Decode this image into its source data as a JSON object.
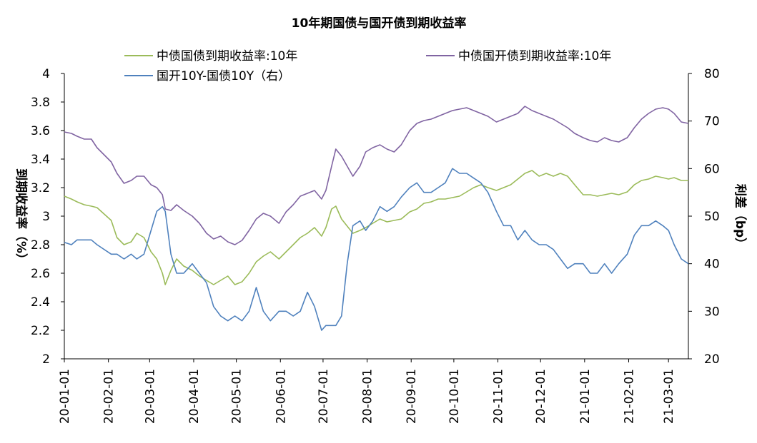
{
  "chart_data": {
    "type": "line",
    "title": "10年期国债与国开债到期收益率",
    "ylabel_left": "到期收益率（%）",
    "ylabel_right": "利差（bp）",
    "ylim_left": [
      2,
      4
    ],
    "ylim_right": [
      20,
      80
    ],
    "yticks_left": [
      "2",
      "2.2",
      "2.4",
      "2.6",
      "2.8",
      "3",
      "3.2",
      "3.4",
      "3.6",
      "3.8",
      "4"
    ],
    "yticks_right": [
      "20",
      "30",
      "40",
      "50",
      "60",
      "70",
      "80"
    ],
    "xticks": [
      "20-01-01",
      "20-02-01",
      "20-03-01",
      "20-04-01",
      "20-05-01",
      "20-06-01",
      "20-07-01",
      "20-08-01",
      "20-09-01",
      "20-10-01",
      "20-11-01",
      "20-12-01",
      "21-01-01",
      "21-02-01",
      "21-03-01"
    ],
    "x_range": [
      "2020-01-01",
      "2021-03-15"
    ],
    "legend_position": "top",
    "series": [
      {
        "name": "中债国债到期收益率:10年",
        "axis": "left",
        "color": "#9bbb59",
        "points": [
          [
            "2020-01-01",
            3.14
          ],
          [
            "2020-01-06",
            3.12
          ],
          [
            "2020-01-10",
            3.1
          ],
          [
            "2020-01-15",
            3.08
          ],
          [
            "2020-01-20",
            3.07
          ],
          [
            "2020-01-24",
            3.06
          ],
          [
            "2020-02-03",
            2.97
          ],
          [
            "2020-02-07",
            2.85
          ],
          [
            "2020-02-12",
            2.8
          ],
          [
            "2020-02-17",
            2.82
          ],
          [
            "2020-02-21",
            2.88
          ],
          [
            "2020-02-26",
            2.85
          ],
          [
            "2020-03-02",
            2.75
          ],
          [
            "2020-03-06",
            2.7
          ],
          [
            "2020-03-10",
            2.6
          ],
          [
            "2020-03-12",
            2.52
          ],
          [
            "2020-03-16",
            2.62
          ],
          [
            "2020-03-20",
            2.7
          ],
          [
            "2020-03-25",
            2.65
          ],
          [
            "2020-03-31",
            2.62
          ],
          [
            "2020-04-05",
            2.58
          ],
          [
            "2020-04-10",
            2.55
          ],
          [
            "2020-04-15",
            2.52
          ],
          [
            "2020-04-20",
            2.55
          ],
          [
            "2020-04-25",
            2.58
          ],
          [
            "2020-04-30",
            2.52
          ],
          [
            "2020-05-05",
            2.54
          ],
          [
            "2020-05-10",
            2.6
          ],
          [
            "2020-05-15",
            2.68
          ],
          [
            "2020-05-20",
            2.72
          ],
          [
            "2020-05-25",
            2.75
          ],
          [
            "2020-05-31",
            2.7
          ],
          [
            "2020-06-05",
            2.75
          ],
          [
            "2020-06-10",
            2.8
          ],
          [
            "2020-06-15",
            2.85
          ],
          [
            "2020-06-20",
            2.88
          ],
          [
            "2020-06-25",
            2.92
          ],
          [
            "2020-06-30",
            2.86
          ],
          [
            "2020-07-03",
            2.92
          ],
          [
            "2020-07-07",
            3.05
          ],
          [
            "2020-07-10",
            3.07
          ],
          [
            "2020-07-14",
            2.98
          ],
          [
            "2020-07-18",
            2.93
          ],
          [
            "2020-07-22",
            2.88
          ],
          [
            "2020-07-27",
            2.9
          ],
          [
            "2020-07-31",
            2.92
          ],
          [
            "2020-08-05",
            2.95
          ],
          [
            "2020-08-10",
            2.98
          ],
          [
            "2020-08-15",
            2.96
          ],
          [
            "2020-08-20",
            2.97
          ],
          [
            "2020-08-25",
            2.98
          ],
          [
            "2020-08-31",
            3.03
          ],
          [
            "2020-09-05",
            3.05
          ],
          [
            "2020-09-10",
            3.09
          ],
          [
            "2020-09-15",
            3.1
          ],
          [
            "2020-09-20",
            3.12
          ],
          [
            "2020-09-25",
            3.12
          ],
          [
            "2020-09-30",
            3.13
          ],
          [
            "2020-10-05",
            3.14
          ],
          [
            "2020-10-10",
            3.17
          ],
          [
            "2020-10-15",
            3.2
          ],
          [
            "2020-10-20",
            3.22
          ],
          [
            "2020-10-25",
            3.2
          ],
          [
            "2020-10-31",
            3.18
          ],
          [
            "2020-11-05",
            3.2
          ],
          [
            "2020-11-10",
            3.22
          ],
          [
            "2020-11-15",
            3.26
          ],
          [
            "2020-11-20",
            3.3
          ],
          [
            "2020-11-25",
            3.32
          ],
          [
            "2020-11-30",
            3.28
          ],
          [
            "2020-12-05",
            3.3
          ],
          [
            "2020-12-10",
            3.28
          ],
          [
            "2020-12-15",
            3.3
          ],
          [
            "2020-12-20",
            3.28
          ],
          [
            "2020-12-25",
            3.22
          ],
          [
            "2020-12-31",
            3.15
          ],
          [
            "2021-01-05",
            3.15
          ],
          [
            "2021-01-10",
            3.14
          ],
          [
            "2021-01-15",
            3.15
          ],
          [
            "2021-01-20",
            3.16
          ],
          [
            "2021-01-25",
            3.15
          ],
          [
            "2021-01-31",
            3.17
          ],
          [
            "2021-02-05",
            3.22
          ],
          [
            "2021-02-10",
            3.25
          ],
          [
            "2021-02-15",
            3.26
          ],
          [
            "2021-02-20",
            3.28
          ],
          [
            "2021-02-25",
            3.27
          ],
          [
            "2021-03-01",
            3.26
          ],
          [
            "2021-03-05",
            3.27
          ],
          [
            "2021-03-10",
            3.25
          ],
          [
            "2021-03-15",
            3.25
          ]
        ]
      },
      {
        "name": "中债国开债到期收益率:10年",
        "axis": "left",
        "color": "#8064a2",
        "points": [
          [
            "2020-01-01",
            3.59
          ],
          [
            "2020-01-06",
            3.58
          ],
          [
            "2020-01-10",
            3.56
          ],
          [
            "2020-01-15",
            3.54
          ],
          [
            "2020-01-20",
            3.54
          ],
          [
            "2020-01-24",
            3.48
          ],
          [
            "2020-02-03",
            3.38
          ],
          [
            "2020-02-07",
            3.3
          ],
          [
            "2020-02-12",
            3.23
          ],
          [
            "2020-02-17",
            3.25
          ],
          [
            "2020-02-21",
            3.28
          ],
          [
            "2020-02-26",
            3.28
          ],
          [
            "2020-03-02",
            3.22
          ],
          [
            "2020-03-06",
            3.2
          ],
          [
            "2020-03-10",
            3.15
          ],
          [
            "2020-03-12",
            3.05
          ],
          [
            "2020-03-16",
            3.04
          ],
          [
            "2020-03-20",
            3.08
          ],
          [
            "2020-03-25",
            3.04
          ],
          [
            "2020-03-31",
            3.0
          ],
          [
            "2020-04-05",
            2.95
          ],
          [
            "2020-04-10",
            2.88
          ],
          [
            "2020-04-15",
            2.84
          ],
          [
            "2020-04-20",
            2.86
          ],
          [
            "2020-04-25",
            2.82
          ],
          [
            "2020-04-30",
            2.8
          ],
          [
            "2020-05-05",
            2.83
          ],
          [
            "2020-05-10",
            2.9
          ],
          [
            "2020-05-15",
            2.98
          ],
          [
            "2020-05-20",
            3.02
          ],
          [
            "2020-05-25",
            3.0
          ],
          [
            "2020-05-31",
            2.95
          ],
          [
            "2020-06-05",
            3.03
          ],
          [
            "2020-06-10",
            3.08
          ],
          [
            "2020-06-15",
            3.14
          ],
          [
            "2020-06-20",
            3.16
          ],
          [
            "2020-06-25",
            3.18
          ],
          [
            "2020-06-30",
            3.12
          ],
          [
            "2020-07-03",
            3.18
          ],
          [
            "2020-07-07",
            3.35
          ],
          [
            "2020-07-10",
            3.47
          ],
          [
            "2020-07-14",
            3.42
          ],
          [
            "2020-07-18",
            3.35
          ],
          [
            "2020-07-22",
            3.28
          ],
          [
            "2020-07-27",
            3.35
          ],
          [
            "2020-07-31",
            3.45
          ],
          [
            "2020-08-05",
            3.48
          ],
          [
            "2020-08-10",
            3.5
          ],
          [
            "2020-08-15",
            3.47
          ],
          [
            "2020-08-20",
            3.45
          ],
          [
            "2020-08-25",
            3.5
          ],
          [
            "2020-08-31",
            3.6
          ],
          [
            "2020-09-05",
            3.65
          ],
          [
            "2020-09-10",
            3.67
          ],
          [
            "2020-09-15",
            3.68
          ],
          [
            "2020-09-20",
            3.7
          ],
          [
            "2020-09-25",
            3.72
          ],
          [
            "2020-09-30",
            3.74
          ],
          [
            "2020-10-05",
            3.75
          ],
          [
            "2020-10-10",
            3.76
          ],
          [
            "2020-10-15",
            3.74
          ],
          [
            "2020-10-20",
            3.72
          ],
          [
            "2020-10-25",
            3.7
          ],
          [
            "2020-10-31",
            3.66
          ],
          [
            "2020-11-05",
            3.68
          ],
          [
            "2020-11-10",
            3.7
          ],
          [
            "2020-11-15",
            3.72
          ],
          [
            "2020-11-20",
            3.77
          ],
          [
            "2020-11-25",
            3.74
          ],
          [
            "2020-11-30",
            3.72
          ],
          [
            "2020-12-05",
            3.7
          ],
          [
            "2020-12-10",
            3.68
          ],
          [
            "2020-12-15",
            3.65
          ],
          [
            "2020-12-20",
            3.62
          ],
          [
            "2020-12-25",
            3.58
          ],
          [
            "2020-12-31",
            3.55
          ],
          [
            "2021-01-05",
            3.53
          ],
          [
            "2021-01-10",
            3.52
          ],
          [
            "2021-01-15",
            3.55
          ],
          [
            "2021-01-20",
            3.53
          ],
          [
            "2021-01-25",
            3.52
          ],
          [
            "2021-01-31",
            3.55
          ],
          [
            "2021-02-05",
            3.62
          ],
          [
            "2021-02-10",
            3.68
          ],
          [
            "2021-02-15",
            3.72
          ],
          [
            "2021-02-20",
            3.75
          ],
          [
            "2021-02-25",
            3.76
          ],
          [
            "2021-03-01",
            3.75
          ],
          [
            "2021-03-05",
            3.72
          ],
          [
            "2021-03-10",
            3.66
          ],
          [
            "2021-03-15",
            3.65
          ]
        ]
      },
      {
        "name": "国开10Y-国债10Y（右）",
        "axis": "right",
        "color": "#4f81bd",
        "points": [
          [
            "2020-01-01",
            44.5
          ],
          [
            "2020-01-06",
            44
          ],
          [
            "2020-01-10",
            45
          ],
          [
            "2020-01-15",
            45
          ],
          [
            "2020-01-20",
            45
          ],
          [
            "2020-01-24",
            44
          ],
          [
            "2020-02-03",
            42
          ],
          [
            "2020-02-07",
            42
          ],
          [
            "2020-02-12",
            41
          ],
          [
            "2020-02-17",
            42
          ],
          [
            "2020-02-21",
            41
          ],
          [
            "2020-02-26",
            42
          ],
          [
            "2020-03-02",
            47
          ],
          [
            "2020-03-06",
            51
          ],
          [
            "2020-03-10",
            52
          ],
          [
            "2020-03-12",
            51
          ],
          [
            "2020-03-16",
            42
          ],
          [
            "2020-03-20",
            38
          ],
          [
            "2020-03-25",
            38
          ],
          [
            "2020-03-31",
            40
          ],
          [
            "2020-04-05",
            38
          ],
          [
            "2020-04-10",
            36
          ],
          [
            "2020-04-15",
            31
          ],
          [
            "2020-04-20",
            29
          ],
          [
            "2020-04-25",
            28
          ],
          [
            "2020-04-30",
            29
          ],
          [
            "2020-05-05",
            28
          ],
          [
            "2020-05-10",
            30
          ],
          [
            "2020-05-15",
            35
          ],
          [
            "2020-05-20",
            30
          ],
          [
            "2020-05-25",
            28
          ],
          [
            "2020-05-31",
            30
          ],
          [
            "2020-06-05",
            30
          ],
          [
            "2020-06-10",
            29
          ],
          [
            "2020-06-15",
            30
          ],
          [
            "2020-06-20",
            34
          ],
          [
            "2020-06-25",
            31
          ],
          [
            "2020-06-30",
            26
          ],
          [
            "2020-07-03",
            27
          ],
          [
            "2020-07-07",
            27
          ],
          [
            "2020-07-10",
            27
          ],
          [
            "2020-07-14",
            29
          ],
          [
            "2020-07-18",
            40
          ],
          [
            "2020-07-22",
            48
          ],
          [
            "2020-07-27",
            49
          ],
          [
            "2020-07-31",
            47
          ],
          [
            "2020-08-05",
            49
          ],
          [
            "2020-08-10",
            52
          ],
          [
            "2020-08-15",
            51
          ],
          [
            "2020-08-20",
            52
          ],
          [
            "2020-08-25",
            54
          ],
          [
            "2020-08-31",
            56
          ],
          [
            "2020-09-05",
            57
          ],
          [
            "2020-09-10",
            55
          ],
          [
            "2020-09-15",
            55
          ],
          [
            "2020-09-20",
            56
          ],
          [
            "2020-09-25",
            57
          ],
          [
            "2020-09-30",
            60
          ],
          [
            "2020-10-05",
            59
          ],
          [
            "2020-10-10",
            59
          ],
          [
            "2020-10-15",
            58
          ],
          [
            "2020-10-20",
            57
          ],
          [
            "2020-10-25",
            55
          ],
          [
            "2020-10-31",
            51
          ],
          [
            "2020-11-05",
            48
          ],
          [
            "2020-11-10",
            48
          ],
          [
            "2020-11-15",
            45
          ],
          [
            "2020-11-20",
            47
          ],
          [
            "2020-11-25",
            45
          ],
          [
            "2020-11-30",
            44
          ],
          [
            "2020-12-05",
            44
          ],
          [
            "2020-12-10",
            43
          ],
          [
            "2020-12-15",
            41
          ],
          [
            "2020-12-20",
            39
          ],
          [
            "2020-12-25",
            40
          ],
          [
            "2020-12-31",
            40
          ],
          [
            "2021-01-05",
            38
          ],
          [
            "2021-01-10",
            38
          ],
          [
            "2021-01-15",
            40
          ],
          [
            "2021-01-20",
            38
          ],
          [
            "2021-01-25",
            40
          ],
          [
            "2021-01-31",
            42
          ],
          [
            "2021-02-05",
            46
          ],
          [
            "2021-02-10",
            48
          ],
          [
            "2021-02-15",
            48
          ],
          [
            "2021-02-20",
            49
          ],
          [
            "2021-02-25",
            48
          ],
          [
            "2021-03-01",
            47
          ],
          [
            "2021-03-05",
            44
          ],
          [
            "2021-03-10",
            41
          ],
          [
            "2021-03-15",
            40
          ]
        ]
      }
    ]
  }
}
